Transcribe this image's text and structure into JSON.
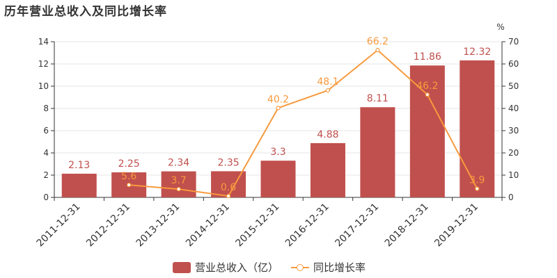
{
  "chart_data": {
    "type": "bar",
    "title": "历年营业总收入及同比增长率",
    "categories": [
      "2011-12-31",
      "2012-12-31",
      "2013-12-31",
      "2014-12-31",
      "2015-12-31",
      "2016-12-31",
      "2017-12-31",
      "2018-12-31",
      "2019-12-31"
    ],
    "series": [
      {
        "name": "营业总收入（亿）",
        "type": "bar",
        "axis": "left",
        "color": "#c0504d",
        "values": [
          2.13,
          2.25,
          2.34,
          2.35,
          3.3,
          4.88,
          8.11,
          11.86,
          12.32
        ],
        "labels": [
          "2.13",
          "2.25",
          "2.34",
          "2.35",
          "3.3",
          "4.88",
          "8.11",
          "11.86",
          "12.32"
        ]
      },
      {
        "name": "同比增长率",
        "type": "line",
        "axis": "right",
        "color": "#f79a3e",
        "values": [
          null,
          5.6,
          3.7,
          0.6,
          40.2,
          48.1,
          66.2,
          46.2,
          3.9
        ],
        "labels": [
          "",
          "5.6",
          "3.7",
          "0.6",
          "40.2",
          "48.1",
          "66.2",
          "46.2",
          "3.9"
        ]
      }
    ],
    "y_left": {
      "min": 0,
      "max": 14,
      "ticks": [
        0,
        2,
        4,
        6,
        8,
        10,
        12,
        14
      ]
    },
    "y_right": {
      "min": 0,
      "max": 70,
      "unit": "%",
      "ticks": [
        0,
        10,
        20,
        30,
        40,
        50,
        60,
        70
      ]
    },
    "grid": true,
    "legend_position": "bottom-center",
    "colors": {
      "grid": "#e6e6e6",
      "axis": "#333333",
      "text": "#333333"
    }
  }
}
